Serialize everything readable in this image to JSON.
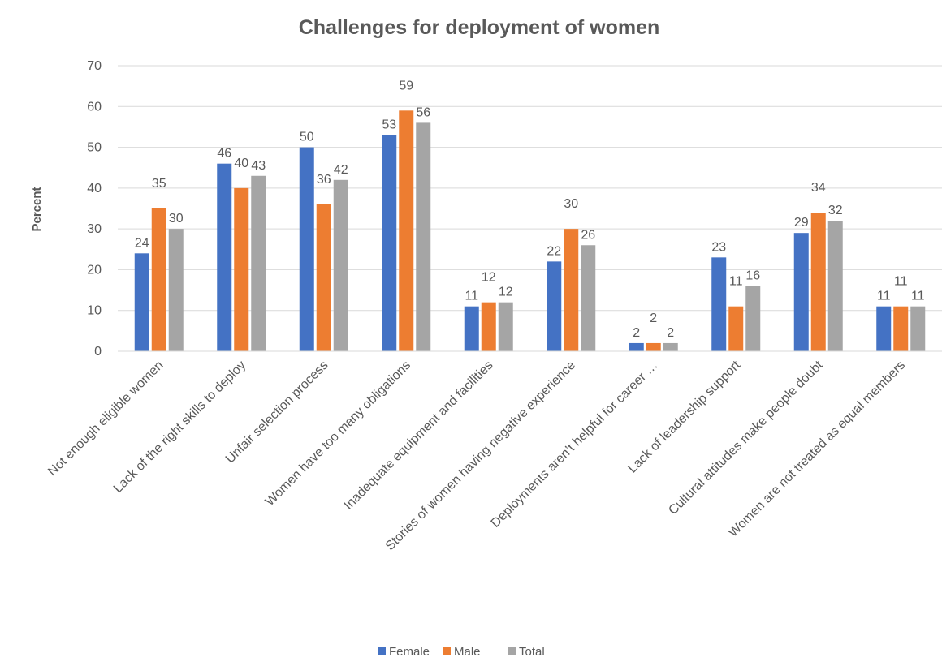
{
  "chart_data": {
    "type": "bar",
    "title": "Challenges for deployment of women",
    "y_label": "Percent",
    "categories": [
      "Not enough eligible women",
      "Lack of the right skills to deploy",
      "Unfair selection process",
      "Women have too many obligations",
      "Inadequate equipment and facilities",
      "Stories of women having negative experience",
      "Deployments aren’t helpful for career …",
      "Lack of leadership support",
      "Cultural attitudes make people doubt",
      "Women are not treated as equal members"
    ],
    "series": [
      {
        "name": "Female",
        "color": "#4472c4",
        "values": [
          24,
          46,
          50,
          53,
          11,
          22,
          2,
          23,
          29,
          11
        ]
      },
      {
        "name": "Male",
        "color": "#ed7d31",
        "values": [
          35,
          40,
          36,
          59,
          12,
          30,
          2,
          11,
          34,
          11
        ]
      },
      {
        "name": "Total",
        "color": "#a5a5a5",
        "values": [
          30,
          43,
          42,
          56,
          12,
          26,
          2,
          16,
          32,
          11
        ]
      }
    ],
    "ylim": [
      0,
      70
    ],
    "yticks": [
      0,
      10,
      20,
      30,
      40,
      50,
      60,
      70
    ],
    "grid": true,
    "legend": "bottom"
  }
}
